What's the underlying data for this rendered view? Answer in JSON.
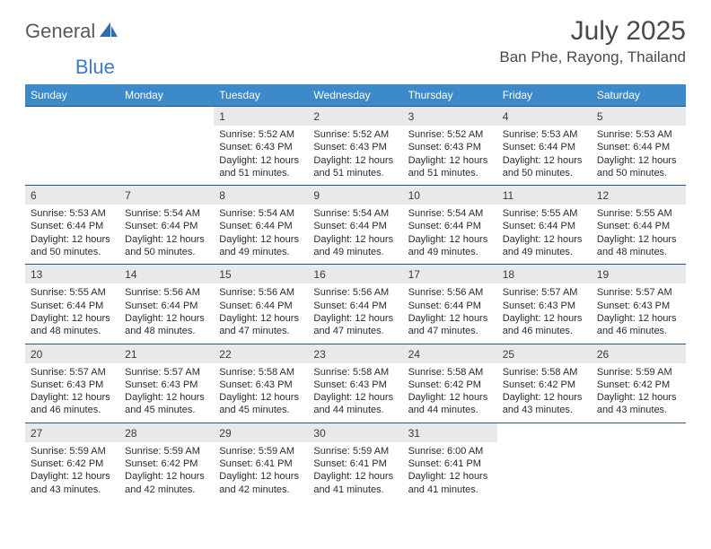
{
  "brand": {
    "general": "General",
    "blue": "Blue"
  },
  "title": "July 2025",
  "location": "Ban Phe, Rayong, Thailand",
  "colors": {
    "header_bg": "#3c8ac9",
    "number_bg": "#e7e9eb",
    "rule": "#2f537a",
    "text": "#2b2b2b",
    "title_text": "#4a4a4a"
  },
  "dow": [
    "Sunday",
    "Monday",
    "Tuesday",
    "Wednesday",
    "Thursday",
    "Friday",
    "Saturday"
  ],
  "weeks": [
    [
      {
        "n": null
      },
      {
        "n": null
      },
      {
        "n": "1",
        "sr": "5:52 AM",
        "ss": "6:43 PM",
        "dl": "12 hours and 51 minutes."
      },
      {
        "n": "2",
        "sr": "5:52 AM",
        "ss": "6:43 PM",
        "dl": "12 hours and 51 minutes."
      },
      {
        "n": "3",
        "sr": "5:52 AM",
        "ss": "6:43 PM",
        "dl": "12 hours and 51 minutes."
      },
      {
        "n": "4",
        "sr": "5:53 AM",
        "ss": "6:44 PM",
        "dl": "12 hours and 50 minutes."
      },
      {
        "n": "5",
        "sr": "5:53 AM",
        "ss": "6:44 PM",
        "dl": "12 hours and 50 minutes."
      }
    ],
    [
      {
        "n": "6",
        "sr": "5:53 AM",
        "ss": "6:44 PM",
        "dl": "12 hours and 50 minutes."
      },
      {
        "n": "7",
        "sr": "5:54 AM",
        "ss": "6:44 PM",
        "dl": "12 hours and 50 minutes."
      },
      {
        "n": "8",
        "sr": "5:54 AM",
        "ss": "6:44 PM",
        "dl": "12 hours and 49 minutes."
      },
      {
        "n": "9",
        "sr": "5:54 AM",
        "ss": "6:44 PM",
        "dl": "12 hours and 49 minutes."
      },
      {
        "n": "10",
        "sr": "5:54 AM",
        "ss": "6:44 PM",
        "dl": "12 hours and 49 minutes."
      },
      {
        "n": "11",
        "sr": "5:55 AM",
        "ss": "6:44 PM",
        "dl": "12 hours and 49 minutes."
      },
      {
        "n": "12",
        "sr": "5:55 AM",
        "ss": "6:44 PM",
        "dl": "12 hours and 48 minutes."
      }
    ],
    [
      {
        "n": "13",
        "sr": "5:55 AM",
        "ss": "6:44 PM",
        "dl": "12 hours and 48 minutes."
      },
      {
        "n": "14",
        "sr": "5:56 AM",
        "ss": "6:44 PM",
        "dl": "12 hours and 48 minutes."
      },
      {
        "n": "15",
        "sr": "5:56 AM",
        "ss": "6:44 PM",
        "dl": "12 hours and 47 minutes."
      },
      {
        "n": "16",
        "sr": "5:56 AM",
        "ss": "6:44 PM",
        "dl": "12 hours and 47 minutes."
      },
      {
        "n": "17",
        "sr": "5:56 AM",
        "ss": "6:44 PM",
        "dl": "12 hours and 47 minutes."
      },
      {
        "n": "18",
        "sr": "5:57 AM",
        "ss": "6:43 PM",
        "dl": "12 hours and 46 minutes."
      },
      {
        "n": "19",
        "sr": "5:57 AM",
        "ss": "6:43 PM",
        "dl": "12 hours and 46 minutes."
      }
    ],
    [
      {
        "n": "20",
        "sr": "5:57 AM",
        "ss": "6:43 PM",
        "dl": "12 hours and 46 minutes."
      },
      {
        "n": "21",
        "sr": "5:57 AM",
        "ss": "6:43 PM",
        "dl": "12 hours and 45 minutes."
      },
      {
        "n": "22",
        "sr": "5:58 AM",
        "ss": "6:43 PM",
        "dl": "12 hours and 45 minutes."
      },
      {
        "n": "23",
        "sr": "5:58 AM",
        "ss": "6:43 PM",
        "dl": "12 hours and 44 minutes."
      },
      {
        "n": "24",
        "sr": "5:58 AM",
        "ss": "6:42 PM",
        "dl": "12 hours and 44 minutes."
      },
      {
        "n": "25",
        "sr": "5:58 AM",
        "ss": "6:42 PM",
        "dl": "12 hours and 43 minutes."
      },
      {
        "n": "26",
        "sr": "5:59 AM",
        "ss": "6:42 PM",
        "dl": "12 hours and 43 minutes."
      }
    ],
    [
      {
        "n": "27",
        "sr": "5:59 AM",
        "ss": "6:42 PM",
        "dl": "12 hours and 43 minutes."
      },
      {
        "n": "28",
        "sr": "5:59 AM",
        "ss": "6:42 PM",
        "dl": "12 hours and 42 minutes."
      },
      {
        "n": "29",
        "sr": "5:59 AM",
        "ss": "6:41 PM",
        "dl": "12 hours and 42 minutes."
      },
      {
        "n": "30",
        "sr": "5:59 AM",
        "ss": "6:41 PM",
        "dl": "12 hours and 41 minutes."
      },
      {
        "n": "31",
        "sr": "6:00 AM",
        "ss": "6:41 PM",
        "dl": "12 hours and 41 minutes."
      },
      {
        "n": null
      },
      {
        "n": null
      }
    ]
  ],
  "labels": {
    "sunrise": "Sunrise:",
    "sunset": "Sunset:",
    "daylight": "Daylight:"
  }
}
